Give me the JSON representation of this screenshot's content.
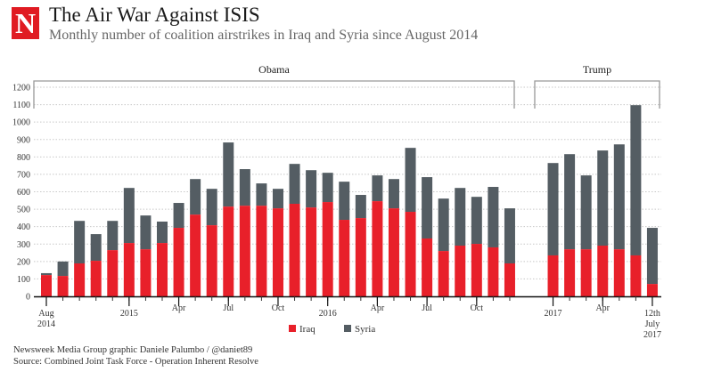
{
  "header": {
    "logo_letter": "N",
    "title": "The Air War Against ISIS",
    "subtitle": "Monthly number of coalition airstrikes in Iraq and Syria since August 2014"
  },
  "footer": {
    "credit": "Newsweek Media Group graphic Daniele Palumbo / @daniet89",
    "source": "Source: Combined Joint Task Force - Operation Inherent Resolve"
  },
  "colors": {
    "iraq": "#e8202a",
    "syria": "#545d63",
    "logo": "#e01b22"
  },
  "chart_data": {
    "type": "bar",
    "stacked": true,
    "title": "The Air War Against ISIS",
    "subtitle": "Monthly number of coalition airstrikes in Iraq and Syria since August 2014",
    "xlabel": "",
    "ylabel": "",
    "ylim": [
      0,
      1200
    ],
    "yticks": [
      0,
      100,
      200,
      300,
      400,
      500,
      600,
      700,
      800,
      900,
      1000,
      1100,
      1200
    ],
    "grid": true,
    "legend": {
      "position": "bottom-center",
      "entries": [
        "Iraq",
        "Syria"
      ]
    },
    "eras": [
      {
        "label": "Obama",
        "from": "2014-08",
        "to": "2016-12"
      },
      {
        "label": "Trump",
        "from": "2017-01",
        "to": "2017-07"
      }
    ],
    "categories": [
      "2014-08",
      "2014-09",
      "2014-10",
      "2014-11",
      "2014-12",
      "2015-01",
      "2015-02",
      "2015-03",
      "2015-04",
      "2015-05",
      "2015-06",
      "2015-07",
      "2015-08",
      "2015-09",
      "2015-10",
      "2015-11",
      "2015-12",
      "2016-01",
      "2016-02",
      "2016-03",
      "2016-04",
      "2016-05",
      "2016-06",
      "2016-07",
      "2016-08",
      "2016-09",
      "2016-10",
      "2016-11",
      "2016-12",
      "2017-01",
      "2017-02",
      "2017-03",
      "2017-04",
      "2017-05",
      "2017-06",
      "2017-07"
    ],
    "x_tick_labels": [
      {
        "index": 0,
        "lines": [
          "Aug",
          "2014"
        ]
      },
      {
        "index": 5,
        "lines": [
          "2015"
        ]
      },
      {
        "index": 8,
        "lines": [
          "Apr"
        ]
      },
      {
        "index": 11,
        "lines": [
          "Jul"
        ]
      },
      {
        "index": 14,
        "lines": [
          "Oct"
        ]
      },
      {
        "index": 17,
        "lines": [
          "2016"
        ]
      },
      {
        "index": 20,
        "lines": [
          "Apr"
        ]
      },
      {
        "index": 23,
        "lines": [
          "Jul"
        ]
      },
      {
        "index": 26,
        "lines": [
          "Oct"
        ]
      },
      {
        "index": 29,
        "lines": [
          "2017"
        ]
      },
      {
        "index": 32,
        "lines": [
          "Apr"
        ]
      },
      {
        "index": 35,
        "lines": [
          "12th",
          "July",
          "2017"
        ]
      }
    ],
    "series": [
      {
        "name": "Iraq",
        "values": [
          122,
          117,
          189,
          204,
          265,
          306,
          270,
          306,
          393,
          469,
          408,
          515,
          520,
          520,
          505,
          531,
          510,
          541,
          439,
          449,
          546,
          505,
          485,
          332,
          260,
          291,
          301,
          281,
          189,
          235,
          270,
          270,
          291,
          270,
          235,
          71
        ]
      },
      {
        "name": "Syria",
        "values": [
          11,
          83,
          244,
          153,
          168,
          316,
          194,
          123,
          143,
          204,
          209,
          368,
          210,
          128,
          112,
          229,
          214,
          168,
          219,
          133,
          148,
          168,
          367,
          352,
          301,
          331,
          270,
          347,
          316,
          530,
          546,
          424,
          546,
          602,
          862,
          322
        ]
      }
    ],
    "totals": [
      133,
      200,
      433,
      357,
      433,
      622,
      464,
      429,
      536,
      673,
      617,
      883,
      730,
      648,
      617,
      760,
      724,
      709,
      658,
      582,
      694,
      673,
      852,
      684,
      561,
      622,
      571,
      628,
      505,
      765,
      816,
      694,
      837,
      872,
      1097,
      393
    ]
  }
}
